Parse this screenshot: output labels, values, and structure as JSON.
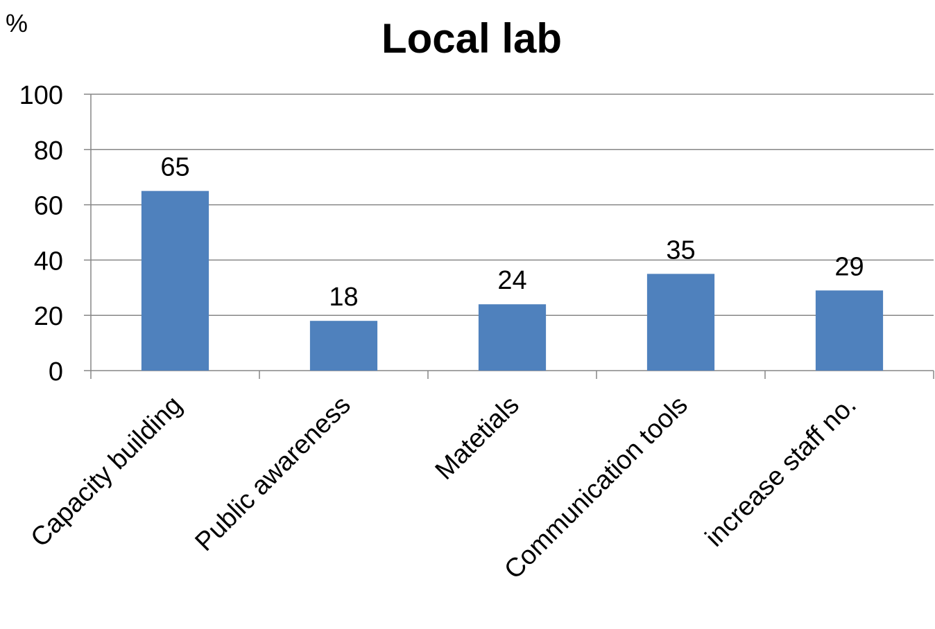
{
  "chart_data": {
    "type": "bar",
    "title": "Local lab",
    "ylabel": "%",
    "xlabel": "",
    "categories": [
      "Capacity building",
      "Public awareness",
      "Matetials",
      "Communication tools",
      "increase staff no."
    ],
    "values": [
      65,
      18,
      24,
      35,
      29
    ],
    "ylim": [
      0,
      100
    ],
    "yticks": [
      0,
      20,
      40,
      60,
      80,
      100
    ],
    "grid": true,
    "data_labels": true,
    "bar_color": "#4F81BD",
    "grid_color": "#868686",
    "axis_color": "#868686"
  }
}
